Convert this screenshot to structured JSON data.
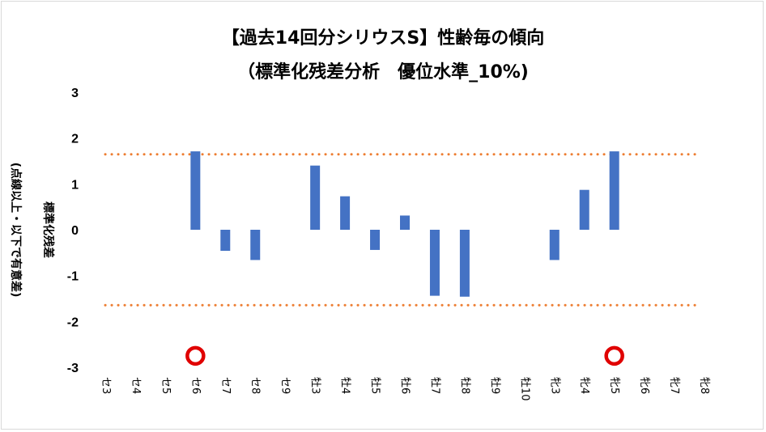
{
  "chart_data": {
    "type": "bar",
    "title_line1": "【過去14回分シリウスS】性齢毎の傾向",
    "title_line2": "（標準化残差分析　優位水準_10%)",
    "ylabel_line1": "標準化残差",
    "ylabel_line2": "(点線以上・以下で有意差)",
    "ylim": [
      -3,
      3
    ],
    "yticks": [
      3,
      2,
      1,
      0,
      -1,
      -2,
      -3
    ],
    "categories": [
      "セ3",
      "セ4",
      "セ5",
      "セ6",
      "セ7",
      "セ8",
      "セ9",
      "牡3",
      "牡4",
      "牡5",
      "牡6",
      "牡7",
      "牡8",
      "牡9",
      "牡10",
      "牝3",
      "牝4",
      "牝5",
      "牝6",
      "牝7",
      "牝8"
    ],
    "values": [
      0,
      0,
      0,
      1.71,
      -0.46,
      -0.66,
      0,
      1.4,
      0.73,
      -0.44,
      0.31,
      -1.44,
      -1.46,
      0,
      0,
      -0.66,
      0.87,
      1.71,
      0,
      0,
      0
    ],
    "threshold_upper": 1.645,
    "threshold_lower": -1.645,
    "markers": [
      {
        "category": "セ6",
        "y": -2.75
      },
      {
        "category": "牝5",
        "y": -2.75
      }
    ],
    "bar_color": "#4472c4",
    "threshold_color": "#ed7d31",
    "marker_color": "#e00000",
    "grid": false,
    "legend": "none"
  }
}
